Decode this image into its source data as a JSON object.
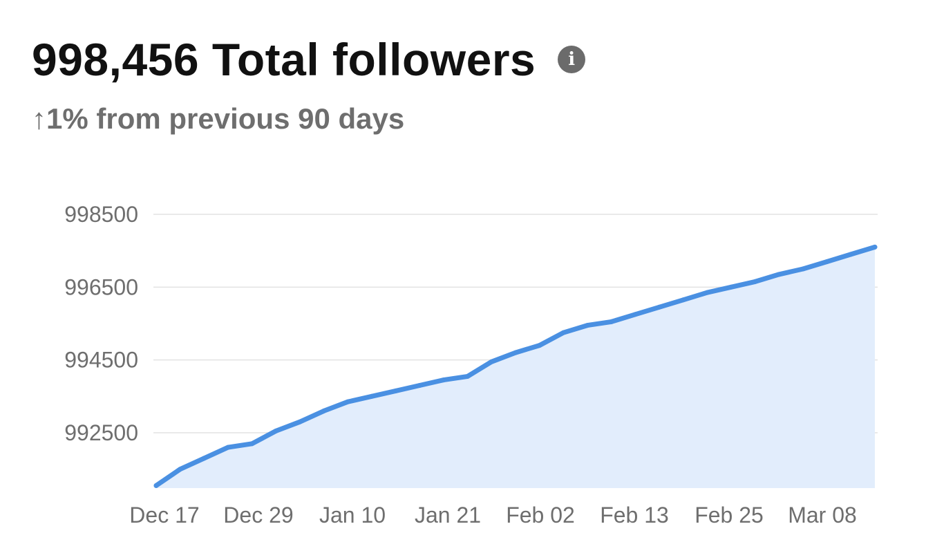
{
  "header": {
    "title": "998,456 Total followers",
    "info_icon": "info-icon",
    "change_arrow": "↑",
    "change_text": "1% from previous 90 days"
  },
  "colors": {
    "line": "#4a90e2",
    "area": "#e2edfc",
    "grid": "#e2e2e2",
    "axis_text": "#6e6e6e"
  },
  "chart_data": {
    "type": "area",
    "title": "",
    "xlabel": "",
    "ylabel": "",
    "x_ticks": [
      "Dec 17",
      "Dec 29",
      "Jan 10",
      "Jan 21",
      "Feb 02",
      "Feb 13",
      "Feb 25",
      "Mar 08"
    ],
    "y_ticks": [
      992500,
      994500,
      996500,
      998500
    ],
    "ylim": [
      991000,
      998500
    ],
    "grid": true,
    "legend": "none",
    "series": [
      {
        "x": [
          "Dec 14",
          "Dec 17",
          "Dec 20",
          "Dec 23",
          "Dec 26",
          "Dec 29",
          "Jan 1",
          "Jan 4",
          "Jan 7",
          "Jan 10",
          "Jan 13",
          "Jan 16",
          "Jan 19",
          "Jan 22",
          "Jan 25",
          "Jan 28",
          "Jan 31",
          "Feb 3",
          "Feb 6",
          "Feb 9",
          "Feb 12",
          "Feb 15",
          "Feb 18",
          "Feb 21",
          "Feb 24",
          "Feb 27",
          "Mar 2",
          "Mar 5",
          "Mar 8",
          "Mar 11",
          "Mar 14"
        ],
        "values": [
          991050,
          991500,
          991800,
          992100,
          992200,
          992550,
          992800,
          993100,
          993350,
          993500,
          993650,
          993800,
          993950,
          994050,
          994450,
          994700,
          994900,
          995250,
          995450,
          995550,
          995750,
          995950,
          996150,
          996350,
          996500,
          996650,
          996850,
          997000,
          997200,
          997400,
          997600
        ]
      }
    ]
  }
}
